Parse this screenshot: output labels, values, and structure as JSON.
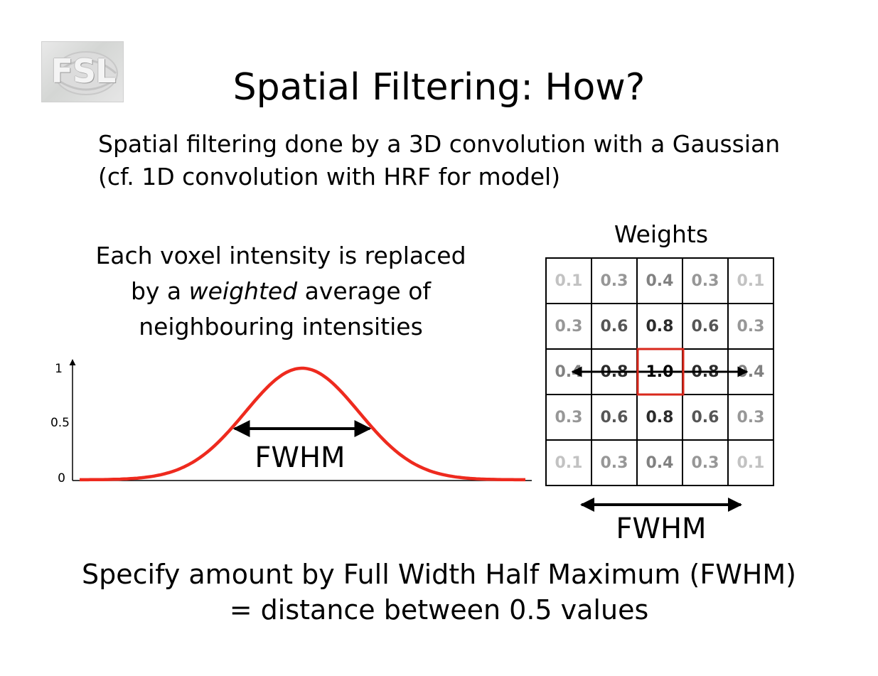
{
  "logo": {
    "text": "FSL"
  },
  "title": "Spatial Filtering: How?",
  "subtitle": {
    "line1": "Spatial filtering done by a 3D convolution with a Gaussian",
    "line2": "(cf. 1D convolution with HRF for model)"
  },
  "voxel_text": {
    "line1": "Each voxel intensity is replaced",
    "line2_pre": "by a ",
    "line2_em": "weighted",
    "line2_post": " average of",
    "line3": "neighbouring intensities"
  },
  "gaussian_plot": {
    "y_ticks": [
      "1",
      "0.5",
      "0"
    ],
    "fwhm_label": "FWHM",
    "curve_color": "#ee2a1e",
    "peak": 1,
    "half_max": 0.5
  },
  "weights": {
    "title": "Weights",
    "rows": [
      [
        "0.1",
        "0.3",
        "0.4",
        "0.3",
        "0.1"
      ],
      [
        "0.3",
        "0.6",
        "0.8",
        "0.6",
        "0.3"
      ],
      [
        "0.4",
        "0.8",
        "1.0",
        "0.8",
        "0.4"
      ],
      [
        "0.3",
        "0.6",
        "0.8",
        "0.6",
        "0.3"
      ],
      [
        "0.1",
        "0.3",
        "0.4",
        "0.3",
        "0.1"
      ]
    ],
    "highlight_color": "#d9271b",
    "fwhm_label": "FWHM"
  },
  "bottom": {
    "line1": "Specify amount by Full Width Half Maximum (FWHM)",
    "line2": "= distance between 0.5 values"
  }
}
